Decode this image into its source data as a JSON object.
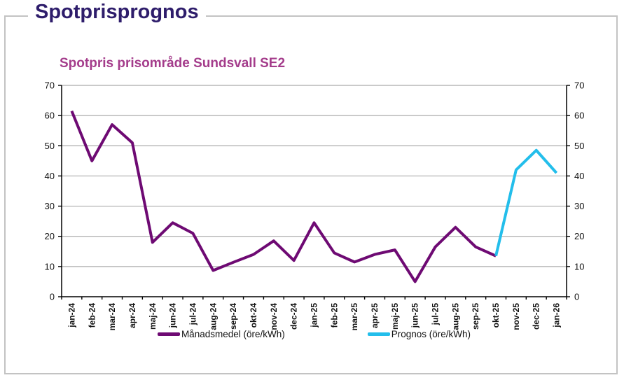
{
  "header": {
    "title": "Spotprisprognos"
  },
  "chart_data": {
    "type": "line",
    "title": "Spotpris prisområde Sundsvall SE2",
    "xlabel": "",
    "ylabel": "",
    "ylim": [
      0,
      70
    ],
    "ytick_step": 10,
    "grid": true,
    "legend_position": "bottom",
    "y_axis_sides": "both",
    "categories": [
      "jan-24",
      "feb-24",
      "mar-24",
      "apr-24",
      "maj-24",
      "jun-24",
      "jul-24",
      "aug-24",
      "sep-24",
      "okt-24",
      "nov-24",
      "dec-24",
      "jan-25",
      "feb-25",
      "mar-25",
      "apr-25",
      "maj-25",
      "jun-25",
      "jul-25",
      "aug-25",
      "sep-25",
      "okt-25",
      "nov-25",
      "dec-25",
      "jan-26"
    ],
    "series": [
      {
        "name": "Månadsmedel (öre/kWh)",
        "color": "#6e0a73",
        "values": [
          61.5,
          45,
          57,
          51,
          18,
          24.5,
          21,
          8.7,
          11.4,
          14,
          18.5,
          12,
          24.5,
          14.5,
          11.5,
          14,
          15.5,
          5,
          16.5,
          23,
          16.5,
          13.5,
          null,
          null,
          null
        ]
      },
      {
        "name": "Prognos (öre/kWh)",
        "color": "#23beeb",
        "values": [
          null,
          null,
          null,
          null,
          null,
          null,
          null,
          null,
          null,
          null,
          null,
          null,
          null,
          null,
          null,
          null,
          null,
          null,
          null,
          null,
          null,
          13.5,
          42,
          48.5,
          41
        ]
      }
    ]
  },
  "colors": {
    "main_title": "#2e1d6b",
    "chart_title": "#a43c8b",
    "gridline": "#ababab",
    "axis": "#000000",
    "box_border": "#c3c3c3",
    "label_text": "#111111"
  }
}
